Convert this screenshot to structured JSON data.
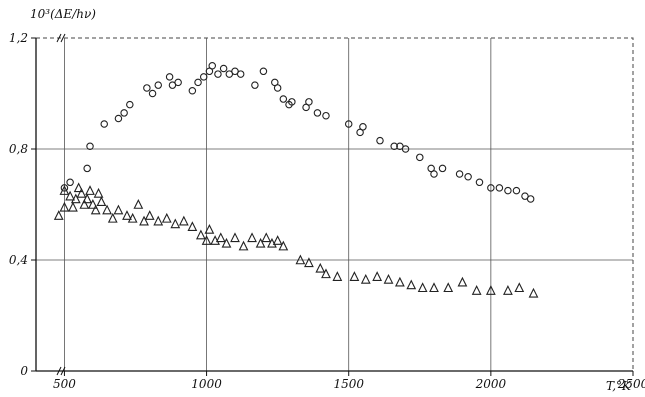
{
  "chart_data": {
    "type": "scatter",
    "title": "",
    "xlabel": "T,°K",
    "ylabel": "10³(ΔE/hν)",
    "xlim": [
      400,
      2500
    ],
    "ylim": [
      0,
      1.2
    ],
    "x_ticks": [
      500,
      1000,
      1500,
      2000,
      2500
    ],
    "x_tick_labels": [
      "500",
      "1000",
      "1500",
      "2000",
      "2500"
    ],
    "y_ticks": [
      0,
      0.4,
      0.8,
      1.2
    ],
    "y_tick_labels": [
      "0",
      "0,4",
      "0,8",
      "1,2"
    ],
    "grid": true,
    "legend": "none",
    "series": [
      {
        "marker": "circle",
        "color": "#222222",
        "points": [
          [
            500,
            0.66
          ],
          [
            520,
            0.68
          ],
          [
            580,
            0.73
          ],
          [
            590,
            0.81
          ],
          [
            640,
            0.89
          ],
          [
            690,
            0.91
          ],
          [
            710,
            0.93
          ],
          [
            730,
            0.96
          ],
          [
            790,
            1.02
          ],
          [
            810,
            1.0
          ],
          [
            830,
            1.03
          ],
          [
            870,
            1.06
          ],
          [
            880,
            1.03
          ],
          [
            900,
            1.04
          ],
          [
            950,
            1.01
          ],
          [
            970,
            1.04
          ],
          [
            990,
            1.06
          ],
          [
            1010,
            1.08
          ],
          [
            1020,
            1.1
          ],
          [
            1040,
            1.07
          ],
          [
            1060,
            1.09
          ],
          [
            1080,
            1.07
          ],
          [
            1100,
            1.08
          ],
          [
            1120,
            1.07
          ],
          [
            1170,
            1.03
          ],
          [
            1200,
            1.08
          ],
          [
            1240,
            1.04
          ],
          [
            1250,
            1.02
          ],
          [
            1270,
            0.98
          ],
          [
            1290,
            0.96
          ],
          [
            1300,
            0.97
          ],
          [
            1350,
            0.95
          ],
          [
            1360,
            0.97
          ],
          [
            1390,
            0.93
          ],
          [
            1420,
            0.92
          ],
          [
            1500,
            0.89
          ],
          [
            1540,
            0.86
          ],
          [
            1550,
            0.88
          ],
          [
            1610,
            0.83
          ],
          [
            1660,
            0.81
          ],
          [
            1680,
            0.81
          ],
          [
            1700,
            0.8
          ],
          [
            1750,
            0.77
          ],
          [
            1790,
            0.73
          ],
          [
            1800,
            0.71
          ],
          [
            1830,
            0.73
          ],
          [
            1890,
            0.71
          ],
          [
            1920,
            0.7
          ],
          [
            1960,
            0.68
          ],
          [
            2000,
            0.66
          ],
          [
            2030,
            0.66
          ],
          [
            2060,
            0.65
          ],
          [
            2090,
            0.65
          ],
          [
            2120,
            0.63
          ],
          [
            2140,
            0.62
          ]
        ]
      },
      {
        "marker": "triangle",
        "color": "#222222",
        "points": [
          [
            480,
            0.56
          ],
          [
            500,
            0.59
          ],
          [
            500,
            0.65
          ],
          [
            520,
            0.63
          ],
          [
            530,
            0.59
          ],
          [
            540,
            0.62
          ],
          [
            550,
            0.66
          ],
          [
            560,
            0.64
          ],
          [
            570,
            0.6
          ],
          [
            580,
            0.62
          ],
          [
            590,
            0.65
          ],
          [
            600,
            0.6
          ],
          [
            610,
            0.58
          ],
          [
            620,
            0.64
          ],
          [
            630,
            0.61
          ],
          [
            650,
            0.58
          ],
          [
            670,
            0.55
          ],
          [
            690,
            0.58
          ],
          [
            720,
            0.56
          ],
          [
            740,
            0.55
          ],
          [
            760,
            0.6
          ],
          [
            780,
            0.54
          ],
          [
            800,
            0.56
          ],
          [
            830,
            0.54
          ],
          [
            860,
            0.55
          ],
          [
            890,
            0.53
          ],
          [
            920,
            0.54
          ],
          [
            950,
            0.52
          ],
          [
            980,
            0.49
          ],
          [
            1000,
            0.47
          ],
          [
            1010,
            0.51
          ],
          [
            1030,
            0.47
          ],
          [
            1050,
            0.48
          ],
          [
            1070,
            0.46
          ],
          [
            1100,
            0.48
          ],
          [
            1130,
            0.45
          ],
          [
            1160,
            0.48
          ],
          [
            1190,
            0.46
          ],
          [
            1210,
            0.48
          ],
          [
            1230,
            0.46
          ],
          [
            1250,
            0.47
          ],
          [
            1270,
            0.45
          ],
          [
            1330,
            0.4
          ],
          [
            1360,
            0.39
          ],
          [
            1400,
            0.37
          ],
          [
            1420,
            0.35
          ],
          [
            1460,
            0.34
          ],
          [
            1520,
            0.34
          ],
          [
            1560,
            0.33
          ],
          [
            1600,
            0.34
          ],
          [
            1640,
            0.33
          ],
          [
            1680,
            0.32
          ],
          [
            1720,
            0.31
          ],
          [
            1760,
            0.3
          ],
          [
            1800,
            0.3
          ],
          [
            1850,
            0.3
          ],
          [
            1900,
            0.32
          ],
          [
            1950,
            0.29
          ],
          [
            2000,
            0.29
          ],
          [
            2060,
            0.29
          ],
          [
            2100,
            0.3
          ],
          [
            2150,
            0.28
          ]
        ]
      }
    ]
  }
}
